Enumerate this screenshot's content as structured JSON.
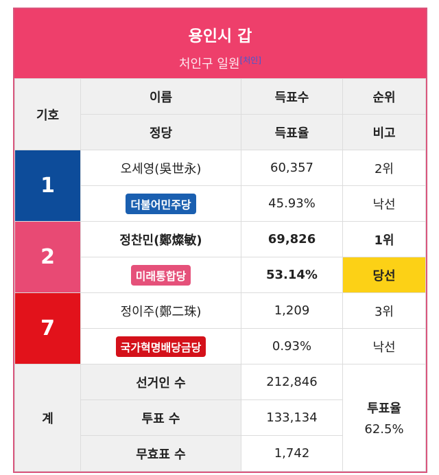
{
  "title": "용인시 갑",
  "subtitle": "처인구 일원",
  "subtitle_note": "[처인]",
  "headers": {
    "number": "기호",
    "name": "이름",
    "party": "정당",
    "votes": "득표수",
    "rate": "득표율",
    "rank": "순위",
    "note": "비고"
  },
  "candidates": [
    {
      "number": "1",
      "name": "오세영(吳世永)",
      "party": "더불어민주당",
      "votes": "60,357",
      "rate": "45.93%",
      "rank": "2위",
      "result": "낙선",
      "color": "#0d4c9a",
      "party_color": "#1a5fb0"
    },
    {
      "number": "2",
      "name": "정찬민(鄭燦敏)",
      "party": "미래통합당",
      "votes": "69,826",
      "rate": "53.14%",
      "rank": "1위",
      "result": "당선",
      "color": "#e84a74",
      "party_color": "#e5517a"
    },
    {
      "number": "7",
      "name": "정이주(鄭二珠)",
      "party": "국가혁명배당금당",
      "votes": "1,209",
      "rate": "0.93%",
      "rank": "3위",
      "result": "낙선",
      "color": "#e2121b",
      "party_color": "#d4111a"
    }
  ],
  "summary": {
    "label": "계",
    "electors_label": "선거인 수",
    "electors": "212,846",
    "ballots_label": "투표 수",
    "ballots": "133,134",
    "invalid_label": "무효표 수",
    "invalid": "1,742",
    "turnout_label": "투표율",
    "turnout": "62.5%"
  }
}
